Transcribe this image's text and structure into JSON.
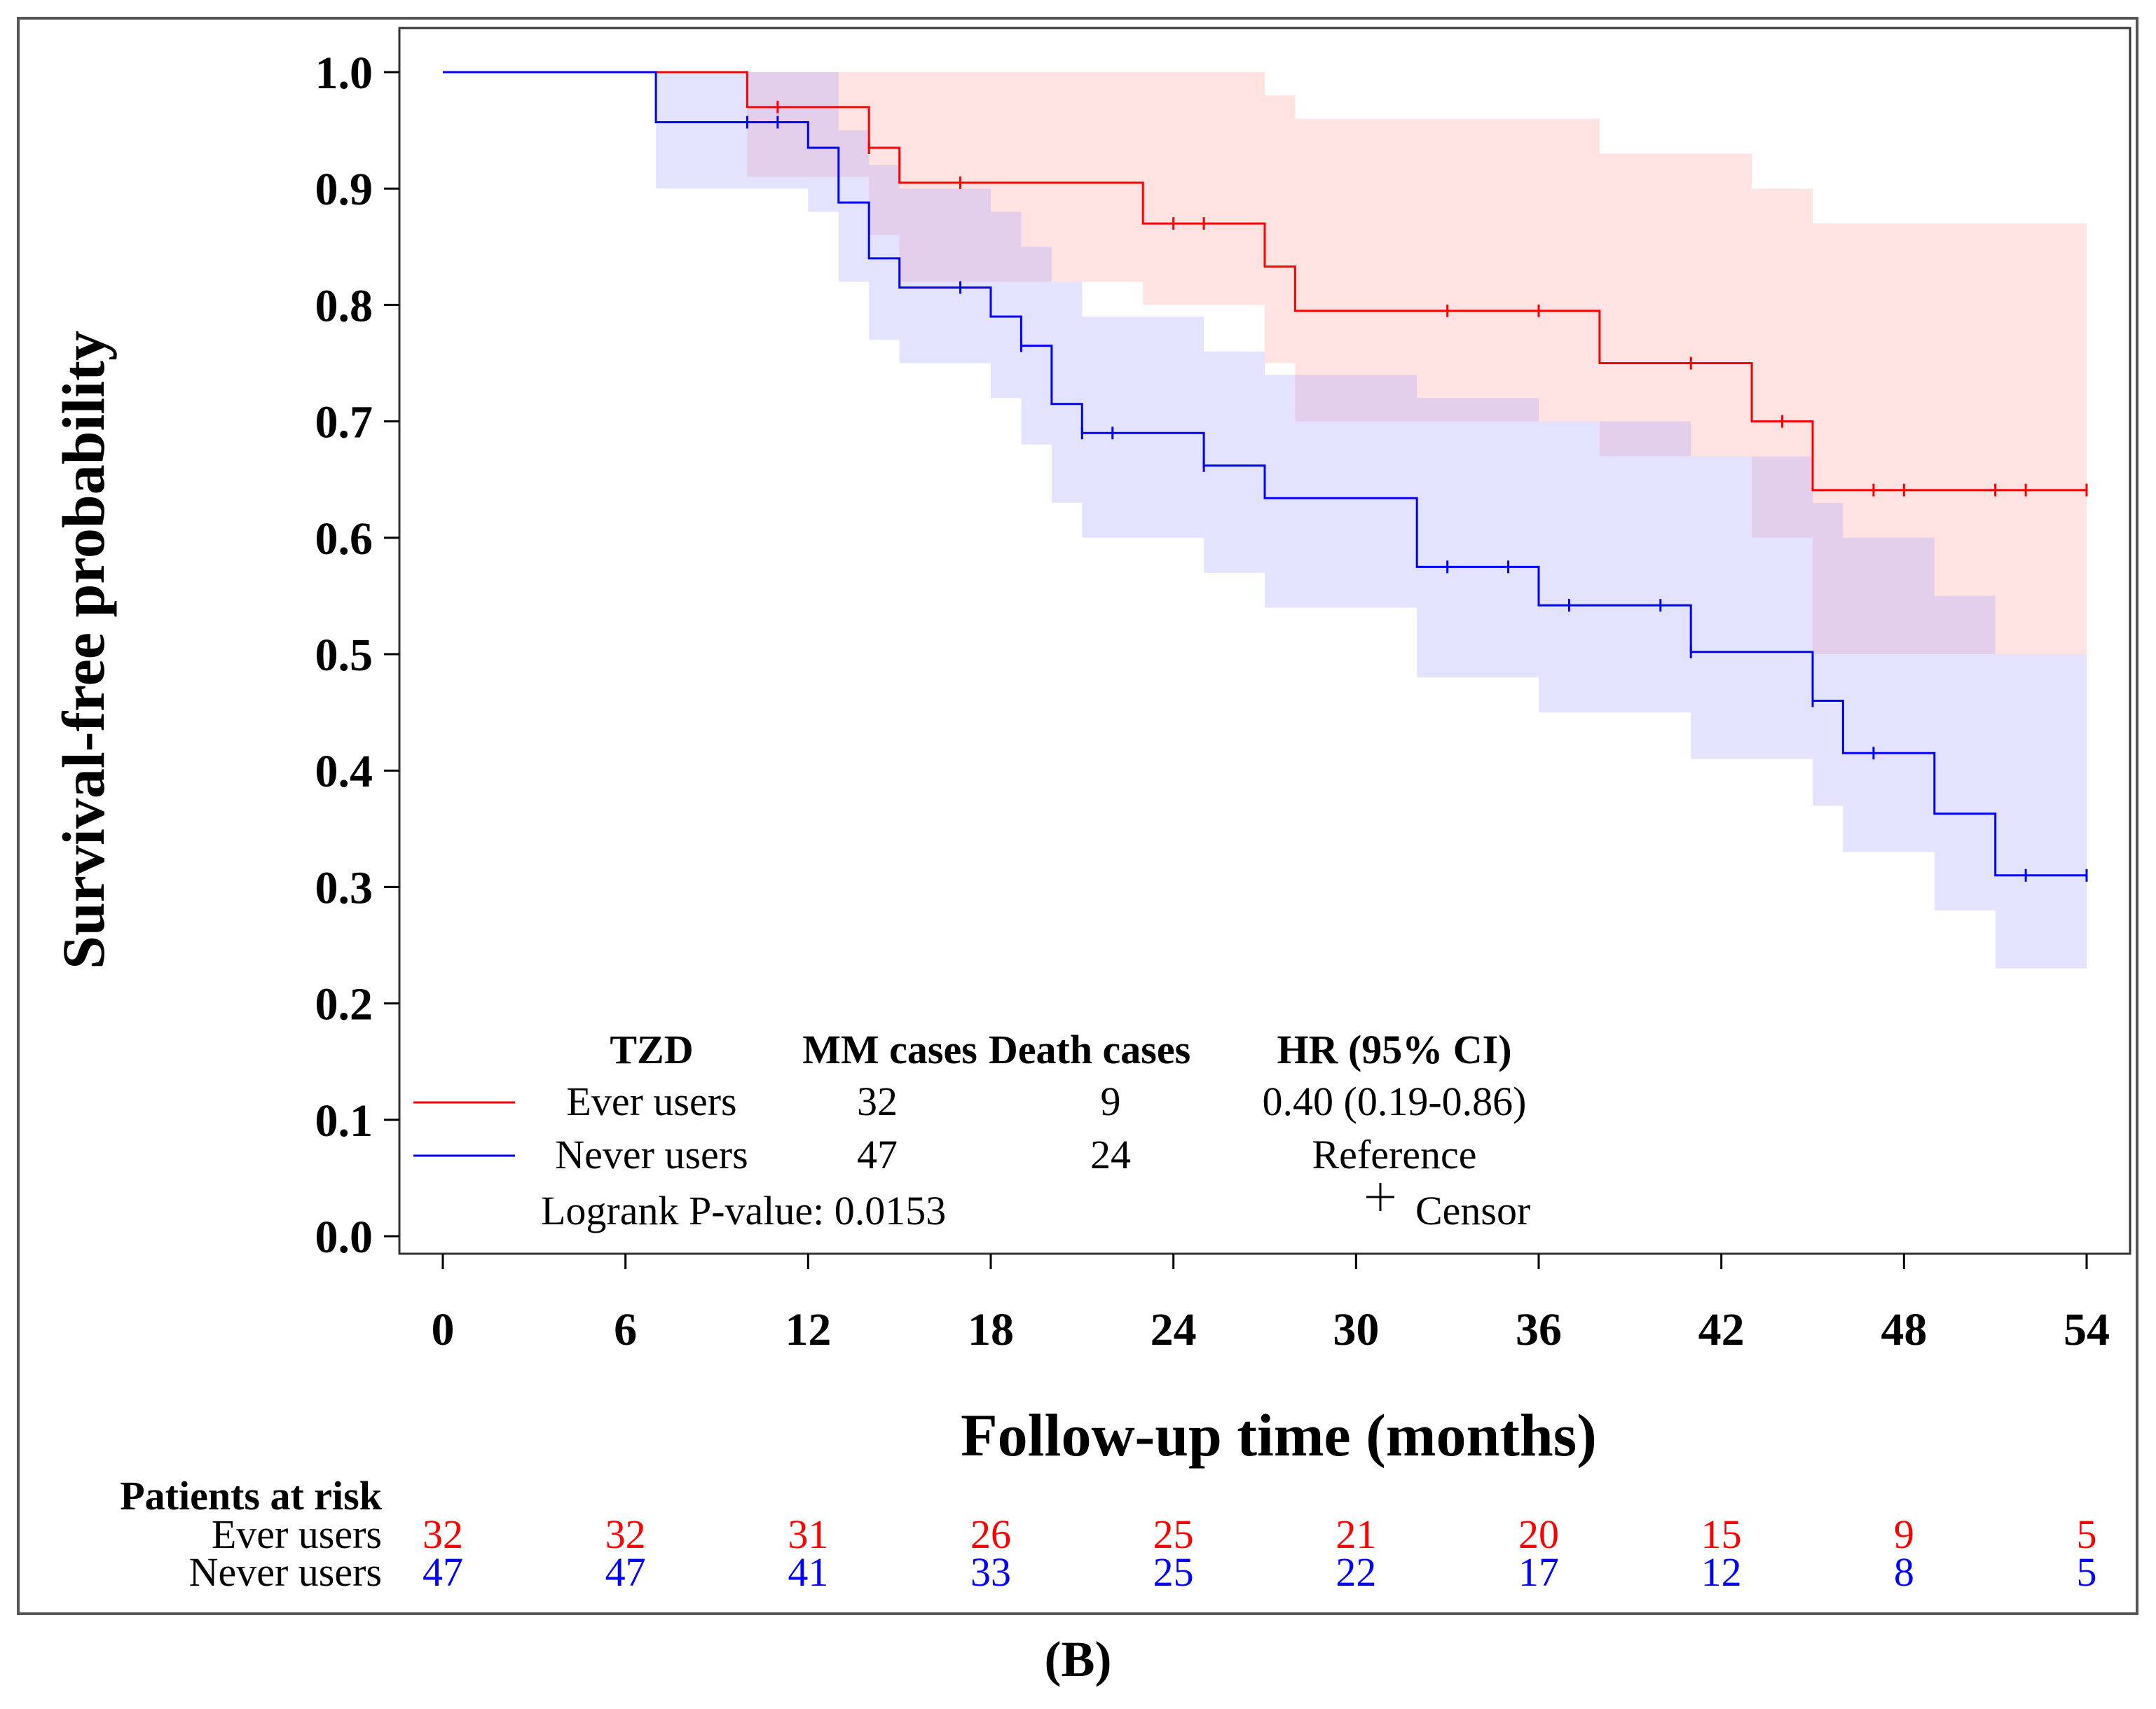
{
  "chart_data": {
    "type": "line",
    "subtype": "kaplan-meier",
    "title": "",
    "xlabel": "Follow-up time (months)",
    "ylabel": "Survival-free probability",
    "xlim": [
      0,
      54
    ],
    "ylim": [
      0.0,
      1.0
    ],
    "x_ticks": [
      "0",
      "6",
      "12",
      "18",
      "24",
      "30",
      "36",
      "42",
      "48",
      "54"
    ],
    "y_ticks": [
      "0.0",
      "0.1",
      "0.2",
      "0.3",
      "0.4",
      "0.5",
      "0.6",
      "0.7",
      "0.8",
      "0.9",
      "1.0"
    ],
    "grid": false,
    "series": [
      {
        "name": "Ever users",
        "color": "#ff0000",
        "band_color": "#ff9999",
        "steps": [
          [
            0,
            1.0
          ],
          [
            10,
            0.97
          ],
          [
            14,
            0.935
          ],
          [
            15,
            0.905
          ],
          [
            23,
            0.87
          ],
          [
            27,
            0.833
          ],
          [
            28,
            0.795
          ],
          [
            38,
            0.75
          ],
          [
            43,
            0.7
          ],
          [
            45,
            0.641
          ],
          [
            54,
            0.641
          ]
        ],
        "ci_steps": [
          [
            0,
            1.0,
            1.0
          ],
          [
            10,
            0.91,
            1.0
          ],
          [
            14,
            0.86,
            1.0
          ],
          [
            15,
            0.82,
            1.0
          ],
          [
            23,
            0.8,
            1.0
          ],
          [
            27,
            0.75,
            0.98
          ],
          [
            28,
            0.7,
            0.96
          ],
          [
            38,
            0.67,
            0.93
          ],
          [
            43,
            0.6,
            0.9
          ],
          [
            45,
            0.5,
            0.87
          ],
          [
            54,
            0.5,
            0.87
          ]
        ],
        "censors": [
          11,
          14,
          17,
          24,
          25,
          33,
          36,
          41,
          44,
          47,
          48,
          51,
          52,
          54
        ]
      },
      {
        "name": "Never users",
        "color": "#0000ff",
        "band_color": "#9999ff",
        "steps": [
          [
            0,
            1.0
          ],
          [
            7,
            0.957
          ],
          [
            12,
            0.935
          ],
          [
            13,
            0.888
          ],
          [
            14,
            0.84
          ],
          [
            15,
            0.815
          ],
          [
            18,
            0.79
          ],
          [
            19,
            0.765
          ],
          [
            20,
            0.715
          ],
          [
            21,
            0.69
          ],
          [
            25,
            0.662
          ],
          [
            27,
            0.634
          ],
          [
            32,
            0.575
          ],
          [
            36,
            0.542
          ],
          [
            41,
            0.502
          ],
          [
            45,
            0.46
          ],
          [
            46,
            0.415
          ],
          [
            49,
            0.363
          ],
          [
            51,
            0.31
          ],
          [
            54,
            0.31
          ]
        ],
        "ci_steps": [
          [
            0,
            1.0,
            1.0
          ],
          [
            7,
            0.9,
            1.0
          ],
          [
            12,
            0.88,
            1.0
          ],
          [
            13,
            0.82,
            0.95
          ],
          [
            14,
            0.77,
            0.92
          ],
          [
            15,
            0.75,
            0.9
          ],
          [
            18,
            0.72,
            0.88
          ],
          [
            19,
            0.68,
            0.85
          ],
          [
            20,
            0.63,
            0.82
          ],
          [
            21,
            0.6,
            0.79
          ],
          [
            25,
            0.57,
            0.76
          ],
          [
            27,
            0.54,
            0.74
          ],
          [
            32,
            0.48,
            0.72
          ],
          [
            36,
            0.45,
            0.7
          ],
          [
            41,
            0.41,
            0.67
          ],
          [
            45,
            0.37,
            0.63
          ],
          [
            46,
            0.33,
            0.6
          ],
          [
            49,
            0.28,
            0.55
          ],
          [
            51,
            0.23,
            0.5
          ],
          [
            54,
            0.23,
            0.5
          ]
        ],
        "censors": [
          10,
          11,
          17,
          19,
          21,
          22,
          25,
          33,
          35,
          37,
          40,
          41,
          45,
          47,
          52,
          54
        ]
      }
    ],
    "legend": {
      "headers": [
        "TZD",
        "MM cases",
        "Death cases",
        "HR (95% CI)"
      ],
      "rows": [
        {
          "group": "Ever users",
          "mm_cases": "32",
          "death_cases": "9",
          "hr": "0.40 (0.19-0.86)"
        },
        {
          "group": "Never users",
          "mm_cases": "47",
          "death_cases": "24",
          "hr": "Reference"
        }
      ],
      "logrank": "Logrank P-value: 0.0153",
      "censor_label": "Censor",
      "placement": "bottom-left"
    },
    "risk_table": {
      "title": "Patients at risk",
      "rows": [
        {
          "label": "Ever users",
          "values": [
            "32",
            "32",
            "31",
            "26",
            "25",
            "21",
            "20",
            "15",
            "9",
            "5"
          ]
        },
        {
          "label": "Never users",
          "values": [
            "47",
            "47",
            "41",
            "33",
            "25",
            "22",
            "17",
            "12",
            "8",
            "5"
          ]
        }
      ]
    }
  },
  "panel_label": "(B)"
}
